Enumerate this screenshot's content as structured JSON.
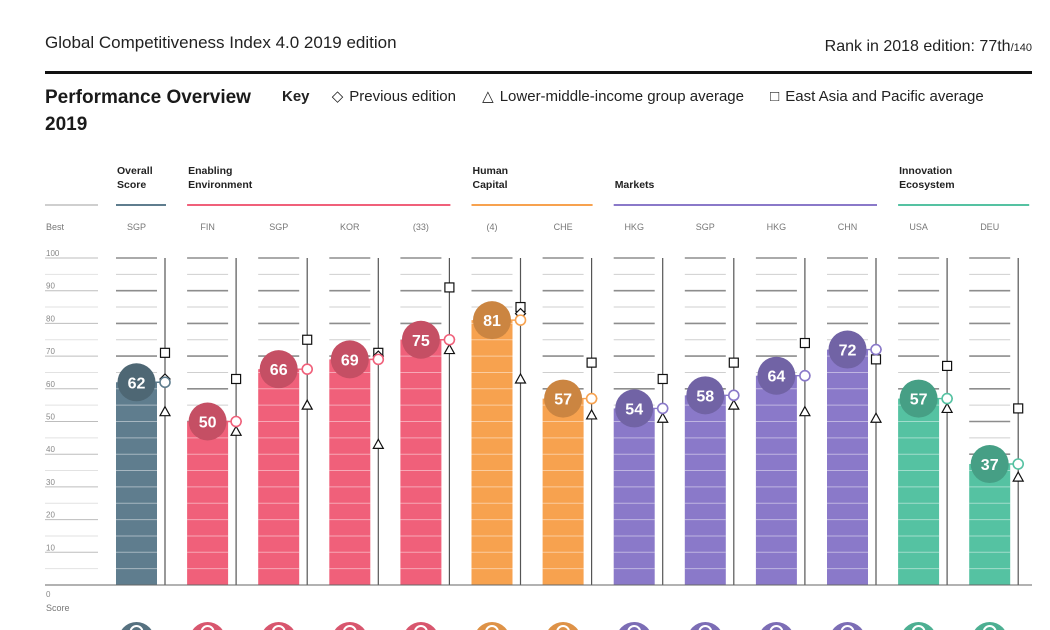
{
  "header": {
    "title": "Global Competitiveness Index 4.0 2019 edition",
    "rank_label": "Rank in 2018 edition: 77th",
    "rank_of": "/140"
  },
  "section": {
    "title": "Performance Overview 2019",
    "key_label": "Key",
    "key_items": [
      {
        "symbol": "◇",
        "label": "Previous edition"
      },
      {
        "symbol": "△",
        "label": "Lower-middle-income group average"
      },
      {
        "symbol": "□",
        "label": "East Asia and Pacific average"
      }
    ]
  },
  "chart_data": {
    "type": "bar",
    "ylim": [
      0,
      100
    ],
    "yticks": [
      0,
      10,
      20,
      30,
      40,
      50,
      60,
      70,
      80,
      90,
      100
    ],
    "best_label": "Best",
    "score_label": "Score",
    "groups": [
      {
        "name": "Overall Score",
        "color": "#5f7d8e"
      },
      {
        "name": "Enabling Environment",
        "color": "#f0607a"
      },
      {
        "name": "Human Capital",
        "color": "#f7a24f"
      },
      {
        "name": "Markets",
        "color": "#8a79c9"
      },
      {
        "name": "Innovation Ecosystem",
        "color": "#55c2a2"
      }
    ],
    "pillars": [
      {
        "group": 0,
        "best": "SGP",
        "value": 62,
        "previous": 63,
        "lmi": 53,
        "eap": 71
      },
      {
        "group": 1,
        "best": "FIN",
        "value": 50,
        "previous": 50,
        "lmi": 47,
        "eap": 63
      },
      {
        "group": 1,
        "best": "SGP",
        "value": 66,
        "previous": 66,
        "lmi": 55,
        "eap": 75
      },
      {
        "group": 1,
        "best": "KOR",
        "value": 69,
        "previous": 70,
        "lmi": 43,
        "eap": 71
      },
      {
        "group": 1,
        "best": "(33)",
        "value": 75,
        "previous": 75,
        "lmi": 72,
        "eap": 91
      },
      {
        "group": 2,
        "best": "(4)",
        "value": 81,
        "previous": 83,
        "lmi": 63,
        "eap": 85
      },
      {
        "group": 2,
        "best": "CHE",
        "value": 57,
        "previous": 57,
        "lmi": 52,
        "eap": 68
      },
      {
        "group": 3,
        "best": "HKG",
        "value": 54,
        "previous": 54,
        "lmi": 51,
        "eap": 63
      },
      {
        "group": 3,
        "best": "SGP",
        "value": 58,
        "previous": 58,
        "lmi": 55,
        "eap": 68
      },
      {
        "group": 3,
        "best": "HKG",
        "value": 64,
        "previous": 64,
        "lmi": 53,
        "eap": 74
      },
      {
        "group": 3,
        "best": "CHN",
        "value": 72,
        "previous": 72,
        "lmi": 51,
        "eap": 69
      },
      {
        "group": 4,
        "best": "USA",
        "value": 57,
        "previous": 57,
        "lmi": 54,
        "eap": 67
      },
      {
        "group": 4,
        "best": "DEU",
        "value": 37,
        "previous": 37,
        "lmi": 33,
        "eap": 54
      }
    ]
  }
}
